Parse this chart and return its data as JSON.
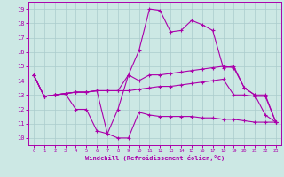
{
  "xlabel": "Windchill (Refroidissement éolien,°C)",
  "background_color": "#cce8e4",
  "grid_color": "#aacccc",
  "line_color": "#aa00aa",
  "xlim": [
    -0.5,
    23.5
  ],
  "ylim": [
    9.5,
    19.5
  ],
  "yticks": [
    10,
    11,
    12,
    13,
    14,
    15,
    16,
    17,
    18,
    19
  ],
  "xticks": [
    0,
    1,
    2,
    3,
    4,
    5,
    6,
    7,
    8,
    9,
    10,
    11,
    12,
    13,
    14,
    15,
    16,
    17,
    18,
    19,
    20,
    21,
    22,
    23
  ],
  "series": [
    [
      14.4,
      12.9,
      13.0,
      13.1,
      12.0,
      12.0,
      10.5,
      10.3,
      10.0,
      10.0,
      11.8,
      11.6,
      11.5,
      11.5,
      11.5,
      11.5,
      11.4,
      11.4,
      11.3,
      11.3,
      11.2,
      11.1,
      11.1,
      11.1
    ],
    [
      14.4,
      12.9,
      13.0,
      13.1,
      13.2,
      13.2,
      13.3,
      13.3,
      13.3,
      13.3,
      13.4,
      13.5,
      13.6,
      13.6,
      13.7,
      13.8,
      13.9,
      14.0,
      14.1,
      13.0,
      13.0,
      12.9,
      12.9,
      11.1
    ],
    [
      14.4,
      12.9,
      13.0,
      13.1,
      13.2,
      13.2,
      13.3,
      13.3,
      13.3,
      14.4,
      14.0,
      14.4,
      14.4,
      14.5,
      14.6,
      14.7,
      14.8,
      14.9,
      15.0,
      14.9,
      13.5,
      13.0,
      13.0,
      11.1
    ],
    [
      14.4,
      12.9,
      13.0,
      13.1,
      13.2,
      13.2,
      13.3,
      10.3,
      12.0,
      14.4,
      16.1,
      19.0,
      18.9,
      17.4,
      17.5,
      18.2,
      17.9,
      17.5,
      14.9,
      15.0,
      13.5,
      13.0,
      11.6,
      11.1
    ]
  ]
}
